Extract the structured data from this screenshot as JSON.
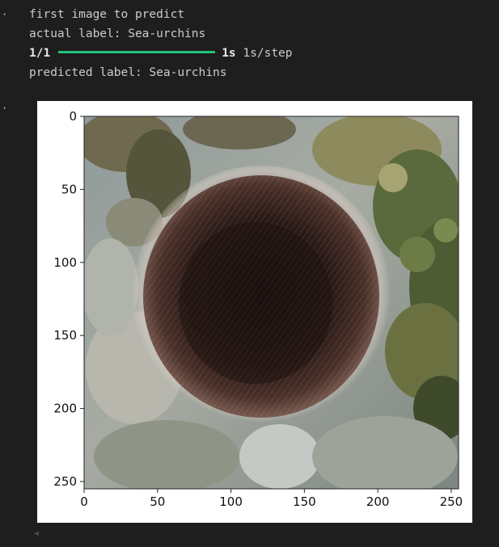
{
  "output": {
    "line1": "first image to predict",
    "line2": "actual label: Sea-urchins",
    "progress": {
      "steps": "1/1",
      "fraction": 1.0,
      "time_bold": "1s",
      "time_rate": "1s/step"
    },
    "line4": "predicted label: Sea-urchins"
  },
  "gutter": {
    "marker": "·"
  },
  "colors": {
    "background": "#1e1e1e",
    "text": "#cccccc",
    "progress_fill": "#23c47b",
    "progress_track": "#3a3a3a"
  },
  "chart_data": {
    "type": "image",
    "title": "",
    "xlabel": "",
    "ylabel": "",
    "xlim": [
      0,
      255
    ],
    "ylim": [
      255,
      0
    ],
    "xticks": [
      "0",
      "50",
      "100",
      "150",
      "200",
      "250"
    ],
    "yticks": [
      "0",
      "50",
      "100",
      "150",
      "200",
      "250"
    ],
    "image_subject": "sea-urchin-photo"
  },
  "scroll": {
    "icon": "chevron-left-icon"
  }
}
